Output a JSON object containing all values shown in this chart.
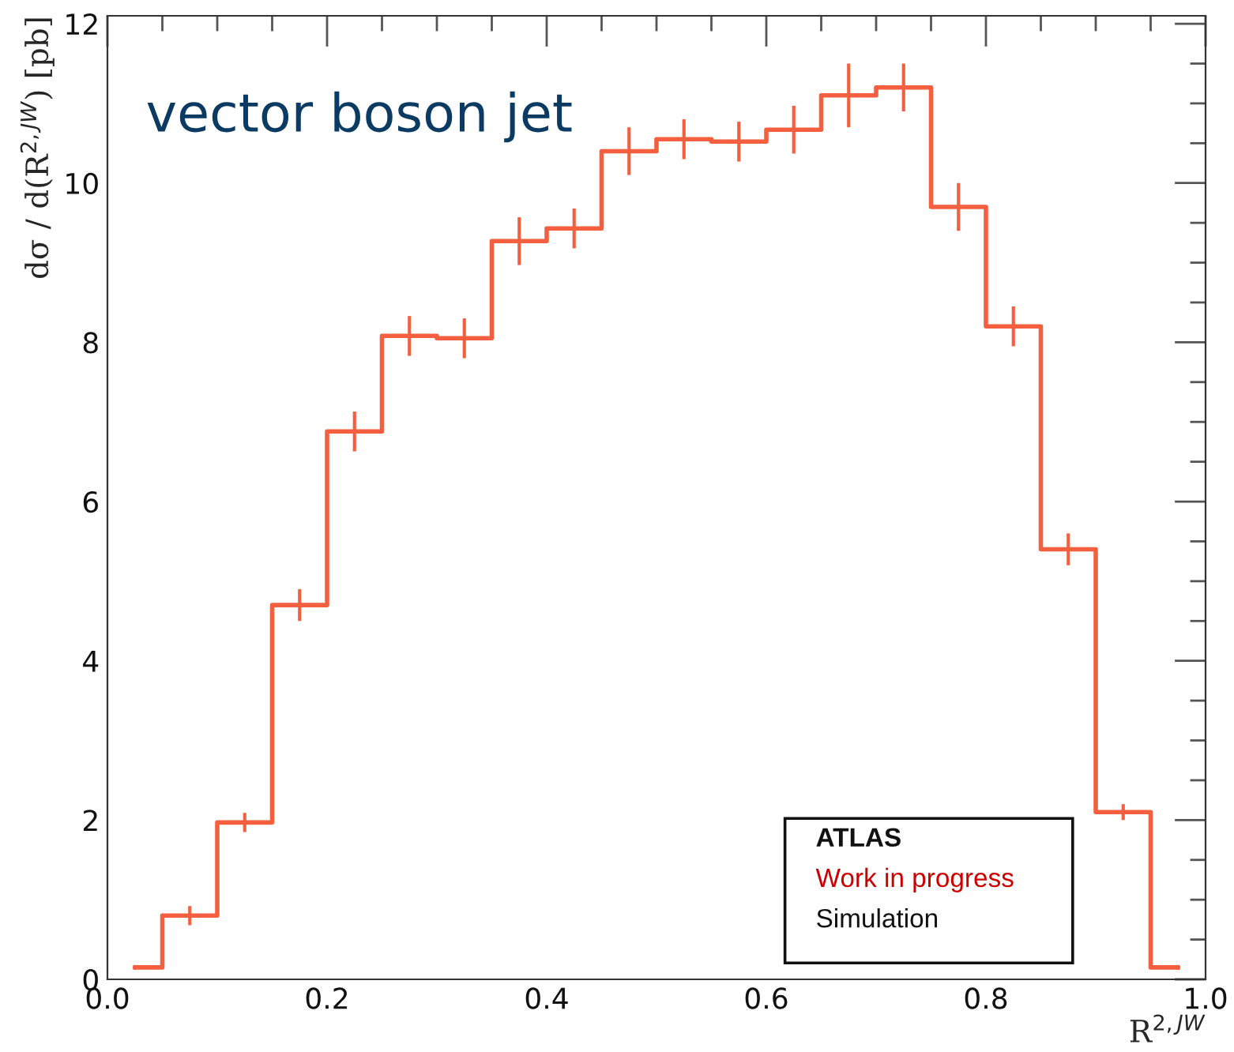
{
  "chart_data": {
    "type": "step",
    "title": "vector boson jet",
    "xlabel": "R$^{2,JW}$",
    "ylabel": "dσ / d(R$^{2,JW}$) [pb]",
    "x": [
      0.025,
      0.075,
      0.125,
      0.175,
      0.225,
      0.275,
      0.325,
      0.375,
      0.425,
      0.475,
      0.525,
      0.575,
      0.625,
      0.675,
      0.725,
      0.775,
      0.825,
      0.875,
      0.925,
      0.975
    ],
    "values": [
      0.15,
      0.8,
      1.97,
      4.7,
      6.88,
      8.08,
      8.05,
      9.27,
      9.43,
      10.4,
      10.55,
      10.52,
      10.67,
      11.1,
      11.2,
      9.7,
      8.2,
      5.4,
      2.1,
      0.15
    ],
    "errors": [
      0.03,
      0.12,
      0.12,
      0.2,
      0.25,
      0.25,
      0.25,
      0.3,
      0.25,
      0.3,
      0.25,
      0.25,
      0.3,
      0.4,
      0.3,
      0.3,
      0.25,
      0.2,
      0.1,
      0.03
    ],
    "color": "#f4603f",
    "xlim": [
      0.0,
      1.0
    ],
    "xticks": [
      {
        "value": 0.0,
        "label": "0.0"
      },
      0.2,
      0.4,
      0.6,
      0.8,
      {
        "value": 1.0,
        "label": "1.0"
      }
    ],
    "ylim": [
      0,
      12.1
    ],
    "yticks": [
      0,
      2,
      4,
      6,
      8,
      10,
      12
    ],
    "grid": false,
    "legend": false,
    "annotations": [
      "ATLAS",
      "Work in progress",
      "Simulation"
    ]
  }
}
